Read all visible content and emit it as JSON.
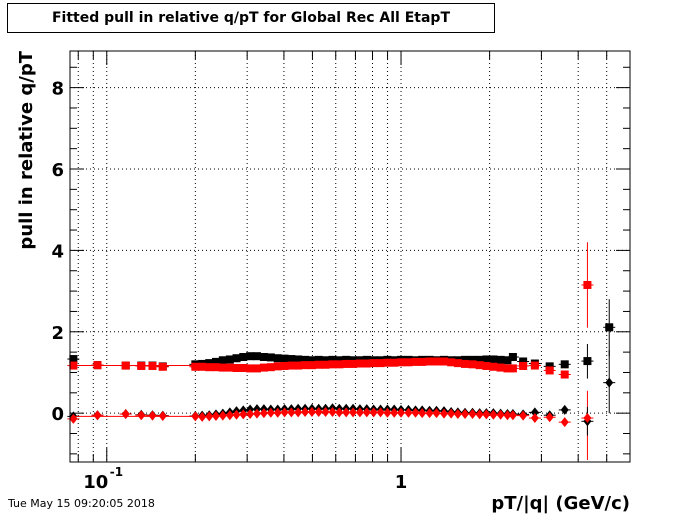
{
  "title": "Fitted pull in relative q/pT for Global Rec All EtapT",
  "timestamp": "Tue May 15 09:20:05 2018",
  "chart_data": {
    "type": "scatter",
    "title": "Fitted pull in relative q/pT for Global Rec All EtapT",
    "xlabel": "pT/|q| (GeV/c)",
    "ylabel": "pull in relative q/pT",
    "xscale": "log",
    "xlim": [
      0.075,
      6.0
    ],
    "ylim": [
      -1.2,
      8.9
    ],
    "xtick_labels": [
      "10^-1",
      "1"
    ],
    "ytick_labels": [
      "0",
      "2",
      "4",
      "6",
      "8"
    ],
    "grid": true,
    "colors": {
      "black": "#000000",
      "red": "#ff0000"
    },
    "series": [
      {
        "marker": "square",
        "color": "#000000",
        "points": [
          [
            0.077,
            1.33
          ],
          [
            0.093,
            1.18
          ],
          [
            0.116,
            1.17
          ],
          [
            0.131,
            1.17
          ],
          [
            0.143,
            1.17
          ],
          [
            0.155,
            1.15
          ],
          [
            0.2,
            1.2
          ],
          [
            0.211,
            1.21
          ],
          [
            0.223,
            1.23
          ],
          [
            0.235,
            1.26
          ],
          [
            0.248,
            1.3
          ],
          [
            0.262,
            1.32
          ],
          [
            0.276,
            1.35
          ],
          [
            0.291,
            1.38
          ],
          [
            0.307,
            1.4
          ],
          [
            0.324,
            1.4
          ],
          [
            0.342,
            1.38
          ],
          [
            0.361,
            1.37
          ],
          [
            0.381,
            1.35
          ],
          [
            0.402,
            1.34
          ],
          [
            0.424,
            1.33
          ],
          [
            0.447,
            1.32
          ],
          [
            0.472,
            1.31
          ],
          [
            0.498,
            1.3
          ],
          [
            0.525,
            1.31
          ],
          [
            0.554,
            1.3
          ],
          [
            0.585,
            1.31
          ],
          [
            0.617,
            1.3
          ],
          [
            0.651,
            1.31
          ],
          [
            0.687,
            1.3
          ],
          [
            0.725,
            1.3
          ],
          [
            0.765,
            1.31
          ],
          [
            0.807,
            1.3
          ],
          [
            0.852,
            1.3
          ],
          [
            0.899,
            1.31
          ],
          [
            0.948,
            1.3
          ],
          [
            1.0,
            1.31
          ],
          [
            1.06,
            1.31
          ],
          [
            1.12,
            1.3
          ],
          [
            1.18,
            1.31
          ],
          [
            1.25,
            1.31
          ],
          [
            1.32,
            1.3
          ],
          [
            1.4,
            1.31
          ],
          [
            1.48,
            1.3
          ],
          [
            1.56,
            1.3
          ],
          [
            1.65,
            1.31
          ],
          [
            1.75,
            1.31
          ],
          [
            1.85,
            1.31
          ],
          [
            1.95,
            1.32
          ],
          [
            2.06,
            1.32
          ],
          [
            2.18,
            1.31
          ],
          [
            2.3,
            1.3
          ],
          [
            2.4,
            1.38
          ],
          [
            2.6,
            1.27
          ],
          [
            2.85,
            1.22
          ],
          [
            3.2,
            1.15
          ],
          [
            3.6,
            1.2
          ],
          [
            4.3,
            1.28
          ],
          [
            5.1,
            2.11
          ]
        ]
      },
      {
        "marker": "square",
        "color": "#ff0000",
        "points": [
          [
            0.077,
            1.17
          ],
          [
            0.093,
            1.18
          ],
          [
            0.116,
            1.17
          ],
          [
            0.131,
            1.16
          ],
          [
            0.143,
            1.16
          ],
          [
            0.155,
            1.14
          ],
          [
            0.2,
            1.14
          ],
          [
            0.211,
            1.14
          ],
          [
            0.223,
            1.13
          ],
          [
            0.235,
            1.13
          ],
          [
            0.248,
            1.12
          ],
          [
            0.262,
            1.12
          ],
          [
            0.276,
            1.11
          ],
          [
            0.291,
            1.11
          ],
          [
            0.307,
            1.1
          ],
          [
            0.324,
            1.1
          ],
          [
            0.342,
            1.12
          ],
          [
            0.361,
            1.13
          ],
          [
            0.381,
            1.15
          ],
          [
            0.402,
            1.16
          ],
          [
            0.424,
            1.17
          ],
          [
            0.447,
            1.17
          ],
          [
            0.472,
            1.18
          ],
          [
            0.498,
            1.18
          ],
          [
            0.525,
            1.19
          ],
          [
            0.554,
            1.19
          ],
          [
            0.585,
            1.2
          ],
          [
            0.617,
            1.2
          ],
          [
            0.651,
            1.21
          ],
          [
            0.687,
            1.21
          ],
          [
            0.725,
            1.22
          ],
          [
            0.765,
            1.22
          ],
          [
            0.807,
            1.23
          ],
          [
            0.852,
            1.23
          ],
          [
            0.899,
            1.24
          ],
          [
            0.948,
            1.24
          ],
          [
            1.0,
            1.25
          ],
          [
            1.06,
            1.25
          ],
          [
            1.12,
            1.26
          ],
          [
            1.18,
            1.26
          ],
          [
            1.25,
            1.27
          ],
          [
            1.32,
            1.27
          ],
          [
            1.4,
            1.27
          ],
          [
            1.48,
            1.25
          ],
          [
            1.56,
            1.23
          ],
          [
            1.65,
            1.21
          ],
          [
            1.75,
            1.2
          ],
          [
            1.85,
            1.18
          ],
          [
            1.95,
            1.16
          ],
          [
            2.06,
            1.14
          ],
          [
            2.18,
            1.12
          ],
          [
            2.3,
            1.1
          ],
          [
            2.4,
            1.1
          ],
          [
            2.6,
            1.16
          ],
          [
            2.85,
            1.17
          ],
          [
            3.2,
            1.05
          ],
          [
            3.6,
            0.95
          ],
          [
            4.3,
            3.15
          ]
        ]
      },
      {
        "marker": "diamond",
        "color": "#000000",
        "points": [
          [
            0.077,
            -0.08
          ],
          [
            0.093,
            -0.05
          ],
          [
            0.116,
            -0.02
          ],
          [
            0.131,
            -0.04
          ],
          [
            0.143,
            -0.05
          ],
          [
            0.155,
            -0.06
          ],
          [
            0.2,
            -0.07
          ],
          [
            0.211,
            -0.06
          ],
          [
            0.223,
            -0.05
          ],
          [
            0.235,
            -0.03
          ],
          [
            0.248,
            -0.01
          ],
          [
            0.262,
            0.02
          ],
          [
            0.276,
            0.05
          ],
          [
            0.291,
            0.07
          ],
          [
            0.307,
            0.09
          ],
          [
            0.324,
            0.1
          ],
          [
            0.342,
            0.1
          ],
          [
            0.361,
            0.09
          ],
          [
            0.381,
            0.09
          ],
          [
            0.402,
            0.1
          ],
          [
            0.424,
            0.1
          ],
          [
            0.447,
            0.11
          ],
          [
            0.472,
            0.11
          ],
          [
            0.498,
            0.11
          ],
          [
            0.525,
            0.11
          ],
          [
            0.554,
            0.11
          ],
          [
            0.585,
            0.12
          ],
          [
            0.617,
            0.11
          ],
          [
            0.651,
            0.11
          ],
          [
            0.687,
            0.11
          ],
          [
            0.725,
            0.1
          ],
          [
            0.765,
            0.1
          ],
          [
            0.807,
            0.09
          ],
          [
            0.852,
            0.09
          ],
          [
            0.899,
            0.09
          ],
          [
            0.948,
            0.09
          ],
          [
            1.0,
            0.08
          ],
          [
            1.06,
            0.08
          ],
          [
            1.12,
            0.07
          ],
          [
            1.18,
            0.07
          ],
          [
            1.25,
            0.06
          ],
          [
            1.32,
            0.06
          ],
          [
            1.4,
            0.05
          ],
          [
            1.48,
            0.03
          ],
          [
            1.56,
            0.02
          ],
          [
            1.65,
            0.01
          ],
          [
            1.75,
            0.01
          ],
          [
            1.85,
            0.0
          ],
          [
            1.95,
            0.0
          ],
          [
            2.06,
            0.0
          ],
          [
            2.18,
            -0.01
          ],
          [
            2.3,
            -0.02
          ],
          [
            2.4,
            -0.02
          ],
          [
            2.6,
            -0.03
          ],
          [
            2.85,
            0.02
          ],
          [
            3.2,
            -0.05
          ],
          [
            3.6,
            0.08
          ],
          [
            4.3,
            -0.2
          ],
          [
            5.1,
            0.75
          ]
        ]
      },
      {
        "marker": "diamond",
        "color": "#ff0000",
        "points": [
          [
            0.077,
            -0.14
          ],
          [
            0.093,
            -0.05
          ],
          [
            0.116,
            -0.02
          ],
          [
            0.131,
            -0.05
          ],
          [
            0.143,
            -0.06
          ],
          [
            0.155,
            -0.07
          ],
          [
            0.2,
            -0.08
          ],
          [
            0.211,
            -0.09
          ],
          [
            0.223,
            -0.08
          ],
          [
            0.235,
            -0.07
          ],
          [
            0.248,
            -0.06
          ],
          [
            0.262,
            -0.05
          ],
          [
            0.276,
            -0.04
          ],
          [
            0.291,
            -0.03
          ],
          [
            0.307,
            -0.02
          ],
          [
            0.324,
            -0.01
          ],
          [
            0.342,
            0.0
          ],
          [
            0.361,
            0.01
          ],
          [
            0.381,
            0.01
          ],
          [
            0.402,
            0.02
          ],
          [
            0.424,
            0.02
          ],
          [
            0.447,
            0.02
          ],
          [
            0.472,
            0.03
          ],
          [
            0.498,
            0.03
          ],
          [
            0.525,
            0.03
          ],
          [
            0.554,
            0.03
          ],
          [
            0.585,
            0.03
          ],
          [
            0.617,
            0.02
          ],
          [
            0.651,
            0.02
          ],
          [
            0.687,
            0.02
          ],
          [
            0.725,
            0.02
          ],
          [
            0.765,
            0.02
          ],
          [
            0.807,
            0.02
          ],
          [
            0.852,
            0.02
          ],
          [
            0.899,
            0.01
          ],
          [
            0.948,
            0.01
          ],
          [
            1.0,
            0.01
          ],
          [
            1.06,
            0.01
          ],
          [
            1.12,
            0.01
          ],
          [
            1.18,
            0.0
          ],
          [
            1.25,
            0.0
          ],
          [
            1.32,
            0.0
          ],
          [
            1.4,
            -0.01
          ],
          [
            1.48,
            -0.01
          ],
          [
            1.56,
            -0.02
          ],
          [
            1.65,
            -0.02
          ],
          [
            1.75,
            -0.02
          ],
          [
            1.85,
            -0.03
          ],
          [
            1.95,
            -0.03
          ],
          [
            2.06,
            -0.04
          ],
          [
            2.18,
            -0.04
          ],
          [
            2.3,
            -0.05
          ],
          [
            2.4,
            -0.05
          ],
          [
            2.6,
            -0.06
          ],
          [
            2.85,
            -0.12
          ],
          [
            3.2,
            -0.1
          ],
          [
            3.6,
            -0.22
          ],
          [
            4.3,
            -0.12
          ]
        ]
      }
    ],
    "error_bars": [
      {
        "x": 4.3,
        "y": 3.15,
        "ylow": 2.1,
        "yhigh": 4.2,
        "color": "#ff0000"
      },
      {
        "x": 4.3,
        "y": -0.12,
        "ylow": -1.15,
        "yhigh": 0.55,
        "color": "#ff0000"
      },
      {
        "x": 5.1,
        "y": 2.11,
        "ylow": 1.4,
        "yhigh": 2.8,
        "color": "#000000"
      },
      {
        "x": 5.1,
        "y": 0.75,
        "ylow": 0.0,
        "yhigh": 1.55,
        "color": "#000000"
      },
      {
        "x": 4.3,
        "y": 1.28,
        "ylow": 0.85,
        "yhigh": 1.7,
        "color": "#000000"
      },
      {
        "x": 4.3,
        "y": -0.2,
        "ylow": -0.55,
        "yhigh": 0.15,
        "color": "#000000"
      }
    ]
  }
}
